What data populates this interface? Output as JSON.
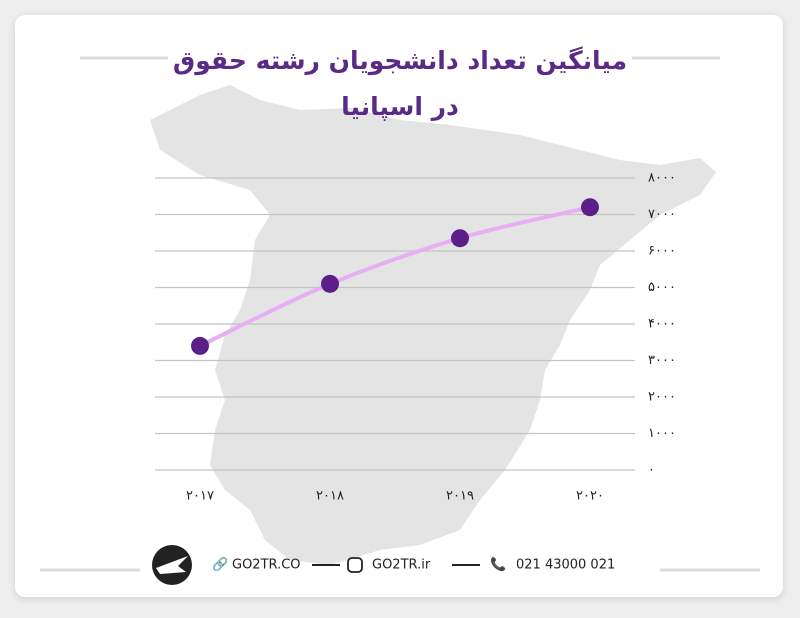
{
  "chart_data": {
    "type": "line",
    "title": "میانگین تعداد دانشجویان رشته حقوق در اسپانیا",
    "categories": [
      "۲۰۱۷",
      "۲۰۱۸",
      "۲۰۱۹",
      "۲۰۲۰"
    ],
    "values": [
      3400,
      5100,
      6350,
      7200
    ],
    "color": "#e7aef3",
    "marker_color": "#5c1f8a",
    "ylim": [
      0,
      8000
    ],
    "yticks": [
      {
        "value": 0,
        "label": "۰"
      },
      {
        "value": 1000,
        "label": "۱۰۰۰"
      },
      {
        "value": 2000,
        "label": "۲۰۰۰"
      },
      {
        "value": 3000,
        "label": "۳۰۰۰"
      },
      {
        "value": 4000,
        "label": "۴۰۰۰"
      },
      {
        "value": 5000,
        "label": "۵۰۰۰"
      },
      {
        "value": 6000,
        "label": "۶۰۰۰"
      },
      {
        "value": 7000,
        "label": "۷۰۰۰"
      },
      {
        "value": 8000,
        "label": "۸۰۰۰"
      }
    ],
    "grid": true
  },
  "footer": {
    "website": "GO2TR.CO",
    "instagram": "GO2TR.ir",
    "phone": "021 43000 021"
  }
}
